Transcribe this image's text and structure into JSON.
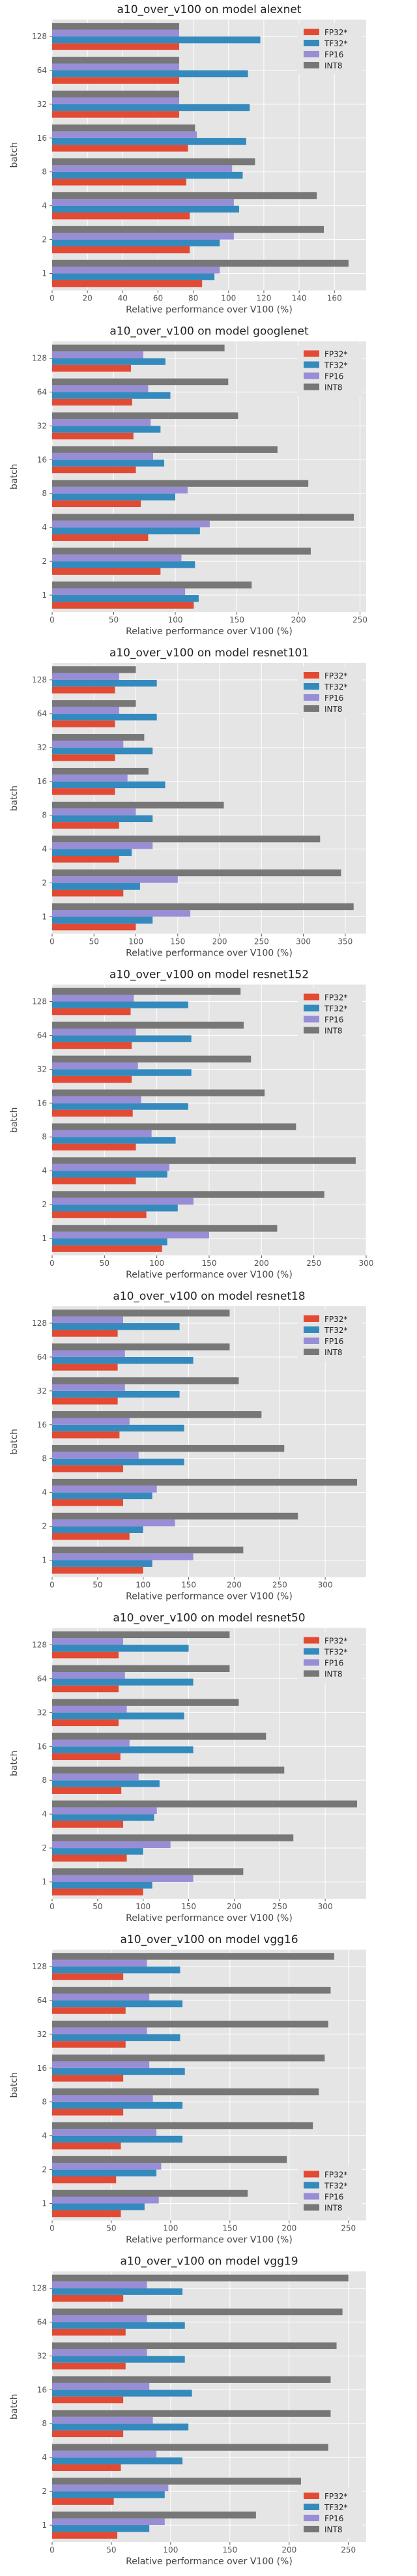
{
  "colors": {
    "FP32*": "#E24A33",
    "TF32*": "#348ABD",
    "FP16": "#988ED5",
    "INT8": "#777777"
  },
  "legend_labels": [
    "FP32*",
    "TF32*",
    "FP16",
    "INT8"
  ],
  "ylabel": "batch",
  "xlabel": "Relative performance over V100 (%)",
  "batches": [
    "1",
    "2",
    "4",
    "8",
    "16",
    "32",
    "64",
    "128"
  ],
  "chart_data": [
    {
      "type": "bar",
      "orientation": "horizontal",
      "title": "a10_over_v100 on model alexnet",
      "categories": [
        "1",
        "2",
        "4",
        "8",
        "16",
        "32",
        "64",
        "128"
      ],
      "xlim": [
        0,
        178
      ],
      "xticks": [
        0,
        20,
        40,
        60,
        80,
        100,
        120,
        140,
        160
      ],
      "legend": "top-right",
      "series": [
        {
          "name": "FP32*",
          "values": [
            85,
            78,
            78,
            76,
            77,
            72,
            72,
            72
          ]
        },
        {
          "name": "TF32*",
          "values": [
            92,
            95,
            106,
            108,
            110,
            112,
            111,
            118
          ]
        },
        {
          "name": "FP16",
          "values": [
            95,
            103,
            103,
            102,
            82,
            72,
            72,
            72
          ]
        },
        {
          "name": "INT8",
          "values": [
            168,
            154,
            150,
            115,
            81,
            72,
            72,
            72
          ]
        }
      ]
    },
    {
      "type": "bar",
      "orientation": "horizontal",
      "title": "a10_over_v100 on model googlenet",
      "categories": [
        "1",
        "2",
        "4",
        "8",
        "16",
        "32",
        "64",
        "128"
      ],
      "xlim": [
        0,
        255
      ],
      "xticks": [
        0,
        50,
        100,
        150,
        200,
        250
      ],
      "legend": "top-right",
      "series": [
        {
          "name": "FP32*",
          "values": [
            115,
            88,
            78,
            72,
            68,
            66,
            65,
            64
          ]
        },
        {
          "name": "TF32*",
          "values": [
            119,
            116,
            120,
            100,
            91,
            88,
            96,
            92
          ]
        },
        {
          "name": "FP16",
          "values": [
            108,
            105,
            128,
            110,
            82,
            80,
            78,
            74
          ]
        },
        {
          "name": "INT8",
          "values": [
            162,
            210,
            245,
            208,
            183,
            151,
            143,
            140
          ]
        }
      ]
    },
    {
      "type": "bar",
      "orientation": "horizontal",
      "title": "a10_over_v100 on model resnet101",
      "categories": [
        "1",
        "2",
        "4",
        "8",
        "16",
        "32",
        "64",
        "128"
      ],
      "xlim": [
        0,
        375
      ],
      "xticks": [
        0,
        50,
        100,
        150,
        200,
        250,
        300,
        350
      ],
      "legend": "top-right",
      "series": [
        {
          "name": "FP32*",
          "values": [
            100,
            85,
            80,
            80,
            75,
            75,
            75,
            75
          ]
        },
        {
          "name": "TF32*",
          "values": [
            120,
            105,
            95,
            120,
            135,
            120,
            125,
            125
          ]
        },
        {
          "name": "FP16",
          "values": [
            165,
            150,
            120,
            100,
            90,
            85,
            80,
            80
          ]
        },
        {
          "name": "INT8",
          "values": [
            360,
            345,
            320,
            205,
            115,
            110,
            100,
            100
          ]
        }
      ]
    },
    {
      "type": "bar",
      "orientation": "horizontal",
      "title": "a10_over_v100 on model resnet152",
      "categories": [
        "1",
        "2",
        "4",
        "8",
        "16",
        "32",
        "64",
        "128"
      ],
      "xlim": [
        0,
        300
      ],
      "xticks": [
        0,
        50,
        100,
        150,
        200,
        250,
        300
      ],
      "legend": "top-right",
      "series": [
        {
          "name": "FP32*",
          "values": [
            105,
            90,
            80,
            80,
            77,
            76,
            76,
            75
          ]
        },
        {
          "name": "TF32*",
          "values": [
            110,
            120,
            110,
            118,
            130,
            133,
            133,
            130
          ]
        },
        {
          "name": "FP16",
          "values": [
            150,
            135,
            112,
            95,
            85,
            82,
            80,
            78
          ]
        },
        {
          "name": "INT8",
          "values": [
            215,
            260,
            290,
            233,
            203,
            190,
            183,
            180
          ]
        }
      ]
    },
    {
      "type": "bar",
      "orientation": "horizontal",
      "title": "a10_over_v100 on model resnet18",
      "categories": [
        "1",
        "2",
        "4",
        "8",
        "16",
        "32",
        "64",
        "128"
      ],
      "xlim": [
        0,
        345
      ],
      "xticks": [
        0,
        50,
        100,
        150,
        200,
        250,
        300
      ],
      "legend": "top-right",
      "series": [
        {
          "name": "FP32*",
          "values": [
            100,
            85,
            78,
            78,
            74,
            72,
            72,
            72
          ]
        },
        {
          "name": "TF32*",
          "values": [
            110,
            100,
            110,
            145,
            145,
            140,
            155,
            140
          ]
        },
        {
          "name": "FP16",
          "values": [
            155,
            135,
            115,
            95,
            85,
            80,
            80,
            78
          ]
        },
        {
          "name": "INT8",
          "values": [
            210,
            270,
            335,
            255,
            230,
            205,
            195,
            195
          ]
        }
      ]
    },
    {
      "type": "bar",
      "orientation": "horizontal",
      "title": "a10_over_v100 on model resnet50",
      "categories": [
        "1",
        "2",
        "4",
        "8",
        "16",
        "32",
        "64",
        "128"
      ],
      "xlim": [
        0,
        345
      ],
      "xticks": [
        0,
        50,
        100,
        150,
        200,
        250,
        300
      ],
      "legend": "top-right",
      "series": [
        {
          "name": "FP32*",
          "values": [
            100,
            82,
            78,
            76,
            75,
            73,
            73,
            73
          ]
        },
        {
          "name": "TF32*",
          "values": [
            110,
            100,
            112,
            118,
            155,
            145,
            155,
            150
          ]
        },
        {
          "name": "FP16",
          "values": [
            155,
            130,
            115,
            95,
            85,
            82,
            80,
            78
          ]
        },
        {
          "name": "INT8",
          "values": [
            210,
            265,
            335,
            255,
            235,
            205,
            195,
            195
          ]
        }
      ]
    },
    {
      "type": "bar",
      "orientation": "horizontal",
      "title": "a10_over_v100 on model vgg16",
      "categories": [
        "1",
        "2",
        "4",
        "8",
        "16",
        "32",
        "64",
        "128"
      ],
      "xlim": [
        0,
        265
      ],
      "xticks": [
        0,
        50,
        100,
        150,
        200,
        250
      ],
      "legend": "bottom-right",
      "series": [
        {
          "name": "FP32*",
          "values": [
            58,
            54,
            58,
            60,
            60,
            62,
            62,
            60
          ]
        },
        {
          "name": "TF32*",
          "values": [
            78,
            88,
            110,
            110,
            112,
            108,
            110,
            108
          ]
        },
        {
          "name": "FP16",
          "values": [
            90,
            92,
            88,
            85,
            82,
            80,
            82,
            80
          ]
        },
        {
          "name": "INT8",
          "values": [
            165,
            198,
            220,
            225,
            230,
            233,
            235,
            238
          ]
        }
      ]
    },
    {
      "type": "bar",
      "orientation": "horizontal",
      "title": "a10_over_v100 on model vgg19",
      "categories": [
        "1",
        "2",
        "4",
        "8",
        "16",
        "32",
        "64",
        "128"
      ],
      "xlim": [
        0,
        265
      ],
      "xticks": [
        0,
        50,
        100,
        150,
        200,
        250
      ],
      "legend": "bottom-right",
      "series": [
        {
          "name": "FP32*",
          "values": [
            55,
            52,
            58,
            60,
            60,
            62,
            62,
            60
          ]
        },
        {
          "name": "TF32*",
          "values": [
            82,
            95,
            110,
            115,
            118,
            112,
            112,
            110
          ]
        },
        {
          "name": "FP16",
          "values": [
            95,
            98,
            88,
            85,
            82,
            80,
            80,
            80
          ]
        },
        {
          "name": "INT8",
          "values": [
            172,
            210,
            233,
            235,
            235,
            240,
            245,
            250
          ]
        }
      ]
    }
  ]
}
